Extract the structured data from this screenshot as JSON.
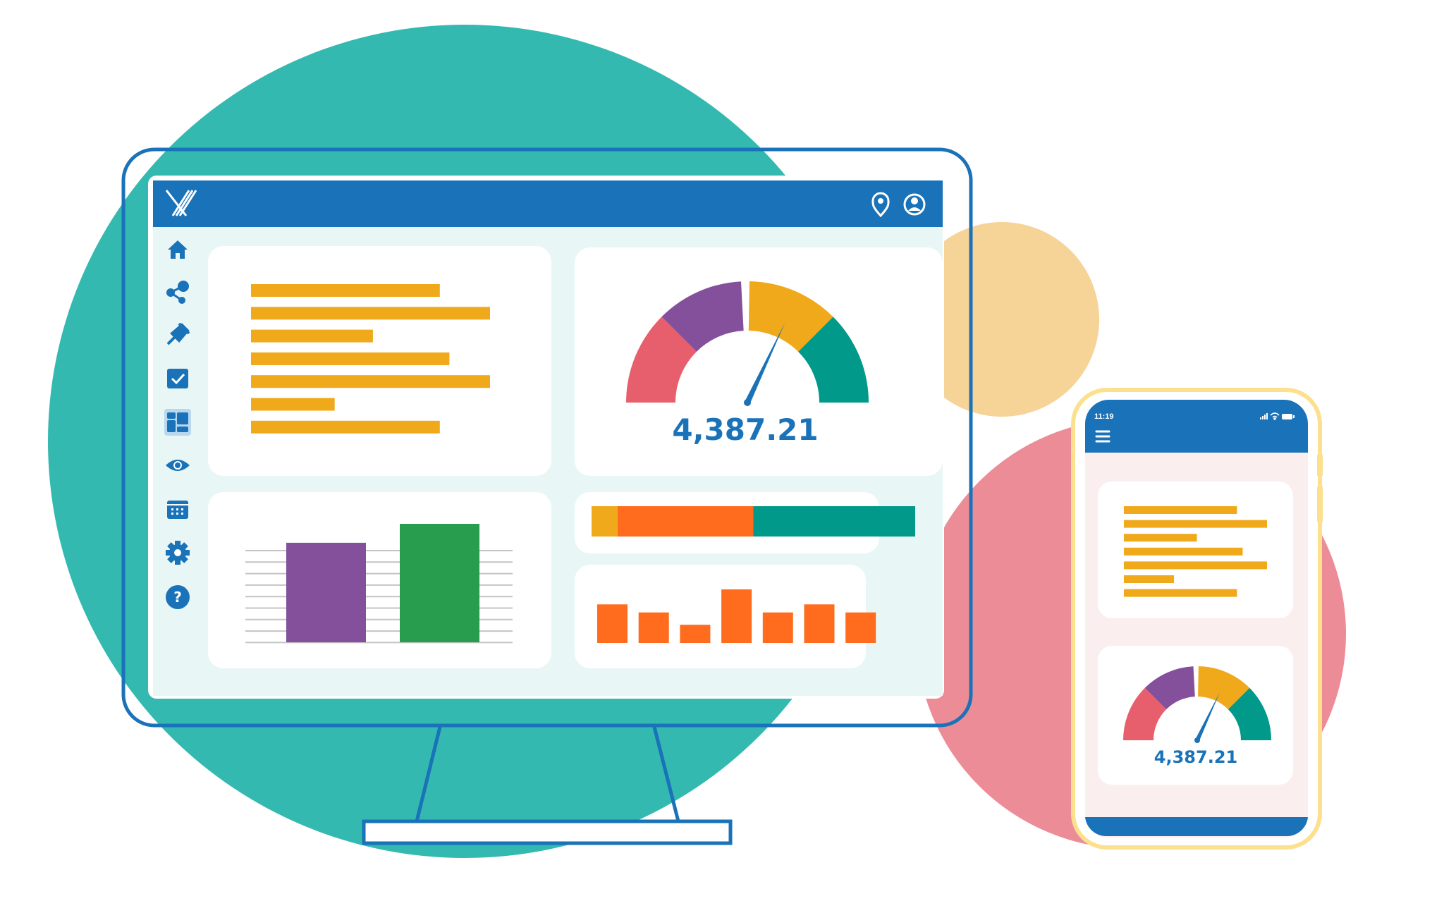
{
  "colors": {
    "brand_blue": "#1a72b8",
    "bar_yellow": "#f0a91b",
    "purple": "#84509b",
    "green": "#289d4d",
    "red": "#e75f6c",
    "teal": "#00998a",
    "orange": "#ff6c1e",
    "bg_teal": "#33b9b0",
    "bg_peach": "#f6d396",
    "bg_pink": "#ec8c97",
    "phone_frame": "#fde08e"
  },
  "desktop": {
    "header": {
      "logo": "X",
      "icons": [
        "location-pin-icon",
        "user-account-icon"
      ]
    },
    "sidebar": {
      "items": [
        {
          "icon": "home-icon"
        },
        {
          "icon": "share-icon"
        },
        {
          "icon": "pin-icon"
        },
        {
          "icon": "checkbox-icon"
        },
        {
          "icon": "dashboard-icon",
          "active": true
        },
        {
          "icon": "eye-icon"
        },
        {
          "icon": "calendar-icon"
        },
        {
          "icon": "gear-icon"
        },
        {
          "icon": "help-icon"
        }
      ]
    },
    "gauge": {
      "value_label": "4,387.21",
      "needle_level": 0.64
    }
  },
  "mobile": {
    "status_bar": {
      "time": "11:19",
      "icons": [
        "signal-icon",
        "wifi-icon",
        "battery-icon"
      ]
    },
    "header": {
      "menu_icon": "hamburger-menu-icon"
    },
    "gauge": {
      "value_label": "4,387.21",
      "needle_level": 0.64
    }
  },
  "chart_data": [
    {
      "type": "bar",
      "orientation": "horizontal",
      "values_percent": [
        79,
        100,
        51,
        83,
        100,
        35,
        79
      ],
      "color": "#f0a91b"
    },
    {
      "type": "bar",
      "values_percent": [
        84,
        100
      ],
      "colors": [
        "#84509b",
        "#289d4d"
      ],
      "grid": true
    },
    {
      "type": "bar",
      "stacked": true,
      "values_percent": [
        8,
        42,
        50
      ],
      "colors": [
        "#f0a91b",
        "#ff6c1e",
        "#00998a"
      ]
    },
    {
      "type": "bar",
      "values_percent": [
        72,
        57,
        34,
        100,
        57,
        72,
        57
      ],
      "color": "#ff6c1e"
    },
    {
      "type": "gauge",
      "segments": [
        "#e75f6c",
        "#84509b",
        "#f0a91b",
        "#00998a"
      ],
      "value_label": "4,387.21",
      "needle_level": 0.64
    }
  ]
}
